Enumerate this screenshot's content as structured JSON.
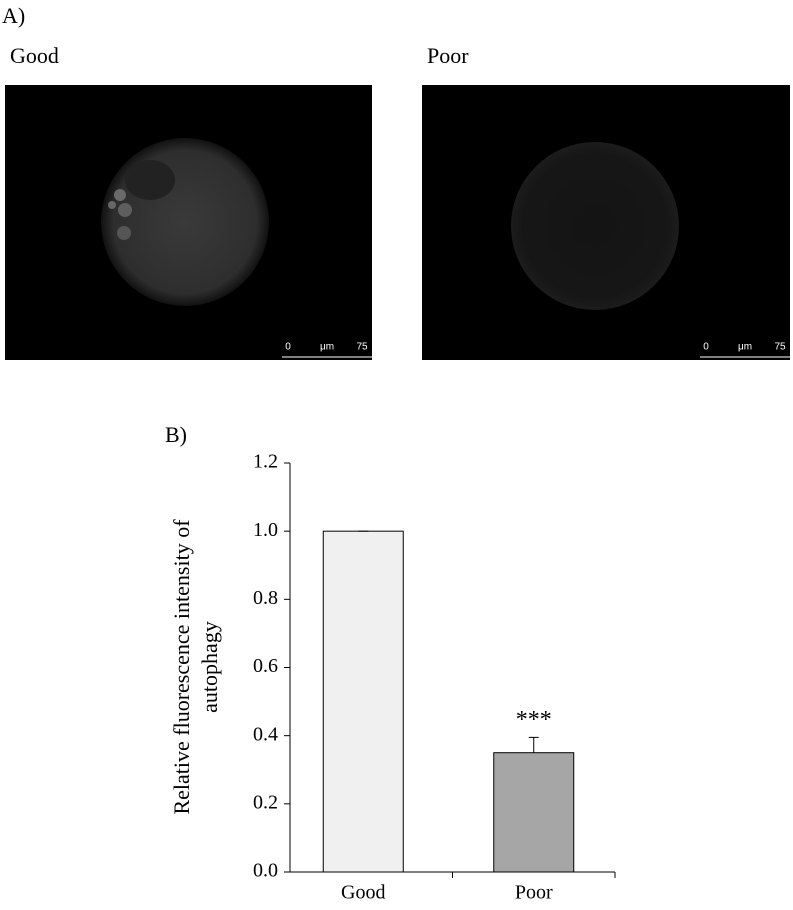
{
  "panel_a": {
    "label": "A)",
    "images": [
      {
        "title": "Good",
        "scale": [
          "0",
          "μm",
          "75"
        ]
      },
      {
        "title": "Poor",
        "scale": [
          "0",
          "μm",
          "75"
        ]
      }
    ]
  },
  "chart_data": {
    "type": "bar",
    "label": "B)",
    "y_label": [
      "Relative fluorescence intensity of",
      "autophagy"
    ],
    "categories": [
      "Good",
      "Poor"
    ],
    "values": [
      1,
      0.35
    ],
    "errors": [
      0,
      0.045
    ],
    "colors": [
      "#f0f0f0",
      "#a6a6a6"
    ],
    "annotation": {
      "text": "***",
      "category": "Poor"
    },
    "ylim": [
      0,
      1.2
    ],
    "yticks": [
      {
        "value": 0,
        "label": "0.0"
      },
      0.2,
      0.4,
      0.6,
      0.8,
      {
        "value": 1,
        "label": "1.0"
      },
      1.2
    ]
  }
}
